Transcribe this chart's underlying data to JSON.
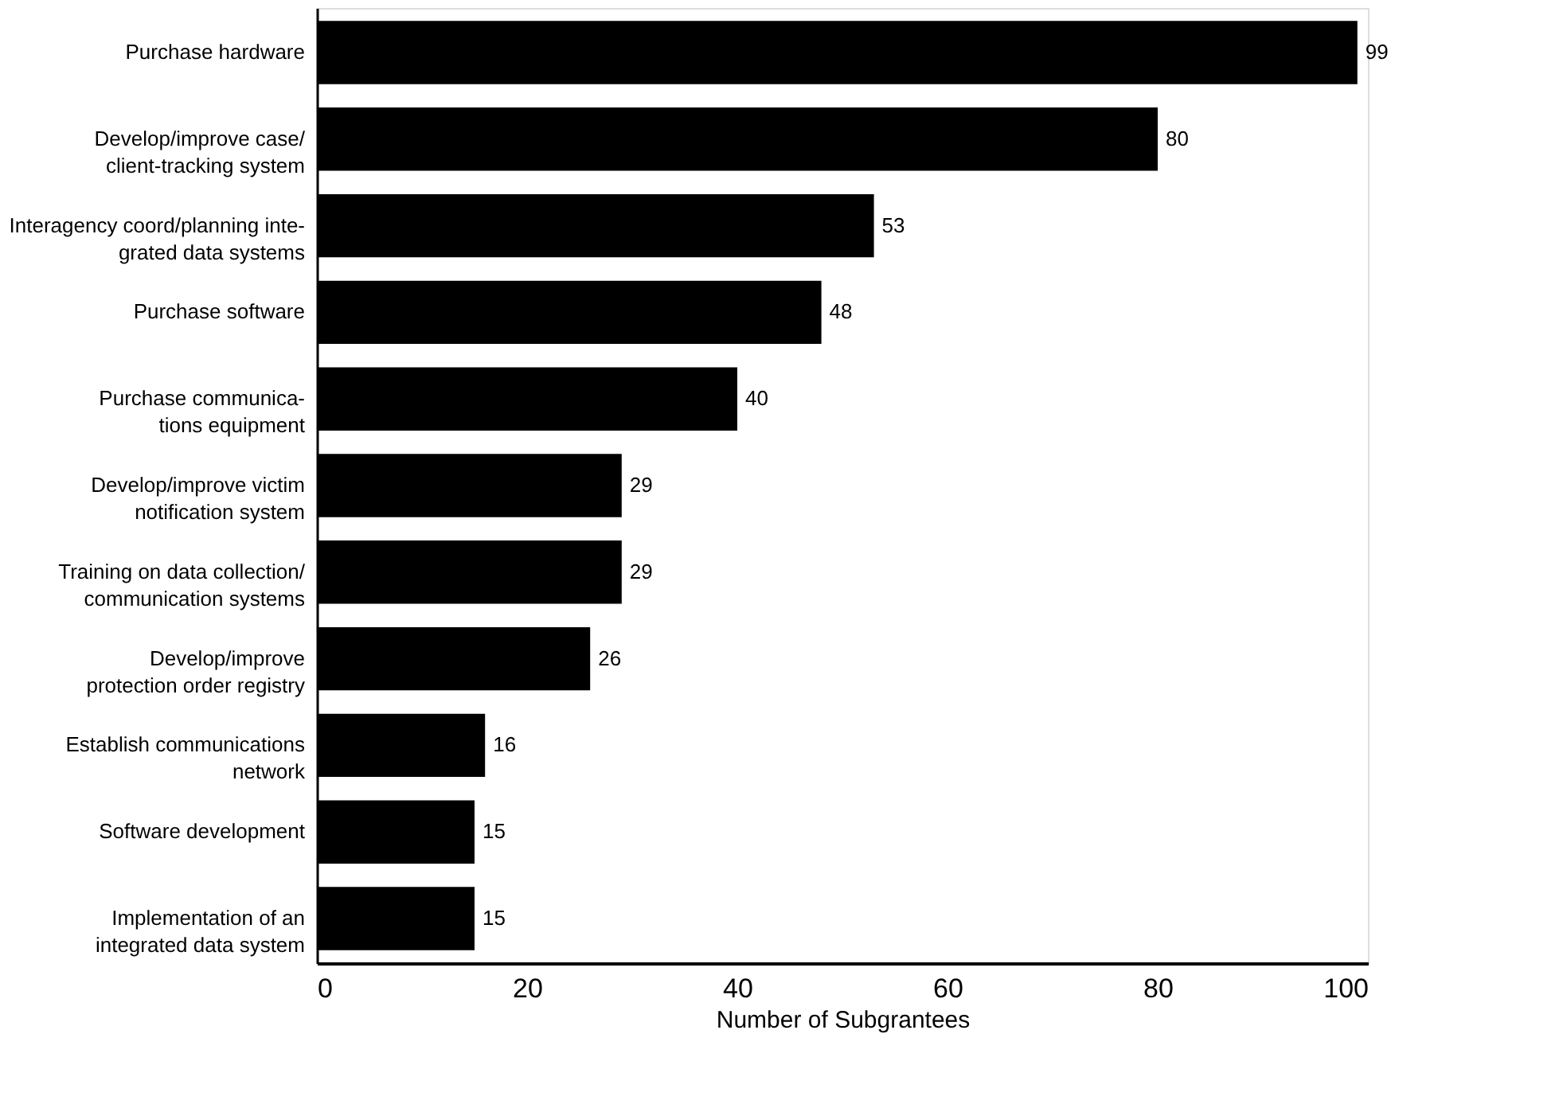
{
  "chart_data": {
    "type": "bar",
    "orientation": "horizontal",
    "xlabel": "Number of Subgrantees",
    "categories": [
      "Purchase hardware",
      "Develop/improve case/\nclient-tracking system",
      "Interagency coord/planning inte-\ngrated data systems",
      "Purchase software",
      "Purchase communica-\ntions equipment",
      "Develop/improve victim\nnotification system",
      "Training on data collection/\ncommunication systems",
      "Develop/improve\nprotection order registry",
      "Establish communications\nnetwork",
      "Software development",
      "Implementation of an\nintegrated data system"
    ],
    "values": [
      99,
      80,
      53,
      48,
      40,
      29,
      29,
      26,
      16,
      15,
      15
    ],
    "color": "#000000",
    "xlim": [
      0,
      100
    ],
    "xticks": [
      0,
      20,
      40,
      60,
      80,
      100
    ],
    "data_labels": true,
    "grid": false
  }
}
